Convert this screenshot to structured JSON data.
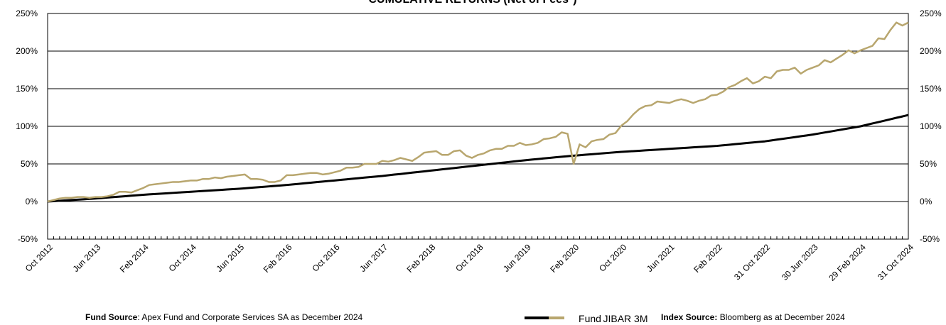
{
  "chart_data": {
    "type": "line",
    "title": "CUMULATIVE RETURNS (Net of Fees*)",
    "categories": [
      "Oct 2012",
      null,
      null,
      null,
      null,
      null,
      null,
      null,
      "Jun 2013",
      null,
      null,
      null,
      null,
      null,
      null,
      null,
      "Feb 2014",
      null,
      null,
      null,
      null,
      null,
      null,
      null,
      "Oct 2014",
      null,
      null,
      null,
      null,
      null,
      null,
      null,
      "Jun 2015",
      null,
      null,
      null,
      null,
      null,
      null,
      null,
      "Feb 2016",
      null,
      null,
      null,
      null,
      null,
      null,
      null,
      "Oct 2016",
      null,
      null,
      null,
      null,
      null,
      null,
      null,
      "Jun 2017",
      null,
      null,
      null,
      null,
      null,
      null,
      null,
      "Feb 2018",
      null,
      null,
      null,
      null,
      null,
      null,
      null,
      "Oct 2018",
      null,
      null,
      null,
      null,
      null,
      null,
      null,
      "Jun 2019",
      null,
      null,
      null,
      null,
      null,
      null,
      null,
      "Feb 2020",
      null,
      null,
      null,
      null,
      null,
      null,
      null,
      "Oct 2020",
      null,
      null,
      null,
      null,
      null,
      null,
      null,
      "Jun 2021",
      null,
      null,
      null,
      null,
      null,
      null,
      null,
      "Feb 2022",
      null,
      null,
      null,
      null,
      null,
      null,
      null,
      "31 Oct 2022",
      null,
      null,
      null,
      null,
      null,
      null,
      null,
      "30 Jun 2023",
      null,
      null,
      null,
      null,
      null,
      null,
      null,
      "29 Feb 2024",
      null,
      null,
      null,
      null,
      null,
      null,
      null,
      "31 Oct 2024"
    ],
    "series": [
      {
        "name": "Fund",
        "color": "#b8a66e",
        "values": [
          0,
          2,
          4,
          5,
          5,
          6,
          6,
          5,
          6,
          6,
          7,
          9,
          13,
          13,
          12,
          15,
          18,
          22,
          23,
          24,
          25,
          26,
          26,
          27,
          28,
          28,
          30,
          30,
          32,
          31,
          33,
          34,
          35,
          36,
          30,
          30,
          29,
          26,
          26,
          28,
          35,
          35,
          36,
          37,
          38,
          38,
          36,
          37,
          39,
          41,
          45,
          45,
          46,
          50,
          50,
          50,
          54,
          53,
          55,
          58,
          56,
          54,
          59,
          65,
          66,
          67,
          62,
          62,
          67,
          68,
          61,
          58,
          62,
          64,
          68,
          70,
          70,
          74,
          74,
          78,
          75,
          76,
          78,
          83,
          84,
          86,
          92,
          90,
          50,
          76,
          72,
          80,
          82,
          83,
          89,
          91,
          101,
          107,
          116,
          123,
          127,
          128,
          133,
          132,
          131,
          134,
          136,
          134,
          131,
          134,
          136,
          141,
          142,
          146,
          152,
          155,
          160,
          164,
          157,
          160,
          166,
          164,
          173,
          175,
          175,
          178,
          170,
          175,
          178,
          181,
          188,
          185,
          190,
          195,
          201,
          197,
          201,
          204,
          207,
          217,
          216,
          228,
          238,
          234,
          238
        ]
      },
      {
        "name": "JIBAR 3M",
        "color": "#000000",
        "values": [
          0,
          0.5,
          1,
          1.5,
          2,
          2.5,
          3,
          3.5,
          4,
          4.6,
          5.3,
          5.9,
          6.5,
          7.1,
          7.8,
          8.4,
          9,
          9.5,
          10,
          10.5,
          11,
          11.5,
          12,
          12.5,
          13,
          13.5,
          14,
          14.5,
          15,
          15.5,
          16,
          16.5,
          17,
          17.6,
          18.3,
          18.9,
          19.5,
          20.1,
          20.8,
          21.4,
          22,
          22.8,
          23.5,
          24.3,
          25,
          25.8,
          26.5,
          27.3,
          28,
          28.8,
          29.5,
          30.3,
          31,
          31.8,
          32.5,
          33.3,
          34,
          34.9,
          35.8,
          36.6,
          37.5,
          38.4,
          39.3,
          40.1,
          41,
          41.9,
          42.8,
          43.6,
          44.5,
          45.4,
          46.3,
          47.1,
          48,
          48.9,
          49.8,
          50.6,
          51.5,
          52.4,
          53.3,
          54.1,
          55,
          55.8,
          56.5,
          57.3,
          58,
          58.8,
          59.5,
          60.3,
          61,
          61.6,
          62.3,
          62.9,
          63.5,
          64.1,
          64.8,
          65.4,
          66,
          66.5,
          67,
          67.5,
          68,
          68.5,
          69,
          69.5,
          70,
          70.5,
          71,
          71.5,
          72,
          72.5,
          73,
          73.5,
          74,
          74.8,
          75.5,
          76.3,
          77,
          77.8,
          78.5,
          79.3,
          80,
          81.1,
          82.3,
          83.4,
          84.5,
          85.6,
          86.8,
          87.9,
          89,
          90.4,
          91.8,
          93.1,
          94.5,
          95.9,
          97.3,
          98.6,
          100,
          101.9,
          103.8,
          105.6,
          107.5,
          109.4,
          111.3,
          113.1,
          115
        ]
      }
    ],
    "ylim": [
      -50,
      250
    ],
    "yticks": [
      {
        "value": -50,
        "label": "-50%"
      },
      {
        "value": 0,
        "label": "0%"
      },
      {
        "value": 50,
        "label": "50%"
      },
      {
        "value": 100,
        "label": "100%"
      },
      {
        "value": 150,
        "label": "150%"
      },
      {
        "value": 200,
        "label": "200%"
      },
      {
        "value": 250,
        "label": "250%"
      }
    ],
    "y2lim": [
      -50,
      250
    ],
    "y2ticks": [
      {
        "value": -50,
        "label": "-50%"
      },
      {
        "value": 0,
        "label": "0%"
      },
      {
        "value": 50,
        "label": "50%"
      },
      {
        "value": 100,
        "label": "100%"
      },
      {
        "value": 150,
        "label": "150%"
      },
      {
        "value": 200,
        "label": "200%"
      },
      {
        "value": 250,
        "label": "250%"
      }
    ],
    "grid": true,
    "footer": {
      "fund_source_label": "Fund Source",
      "fund_source_text": ": Apex Fund and Corporate Services SA as  December 2024",
      "index_source_label": "Index Source:",
      "index_source_text": " Bloomberg as at December 2024"
    }
  }
}
